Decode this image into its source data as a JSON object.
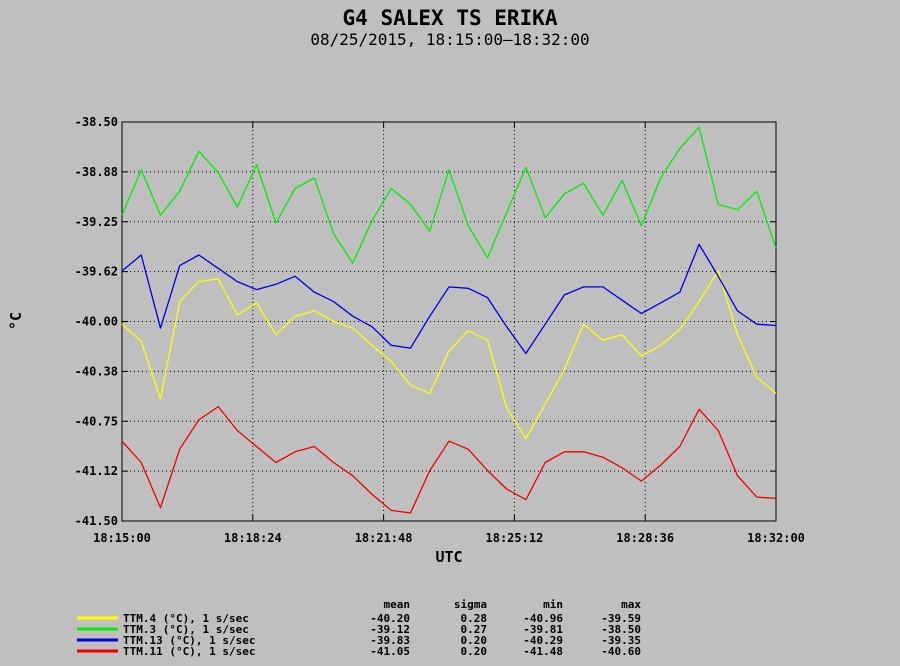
{
  "chart_data": {
    "type": "line",
    "title": "G4 SALEX TS ERIKA",
    "subtitle": "08/25/2015, 18:15:00–18:32:00",
    "xlabel": "UTC",
    "ylabel": "°C",
    "ylim": [
      -41.5,
      -38.5
    ],
    "y_ticks": [
      "-38.50",
      "-38.88",
      "-39.25",
      "-39.62",
      "-40.00",
      "-40.38",
      "-40.75",
      "-41.12",
      "-41.50"
    ],
    "x_ticks": [
      "18:15:00",
      "18:18:24",
      "18:21:48",
      "18:25:12",
      "18:28:36",
      "18:32:00"
    ],
    "x_seconds": [
      0,
      30,
      60,
      90,
      120,
      150,
      180,
      210,
      240,
      270,
      300,
      330,
      360,
      390,
      420,
      450,
      480,
      510,
      540,
      570,
      600,
      630,
      660,
      690,
      720,
      750,
      780,
      810,
      840,
      870,
      900,
      930,
      960,
      990,
      1020
    ],
    "grid": true,
    "legend_position": "bottom",
    "stats_headers": [
      "mean",
      "sigma",
      "min",
      "max"
    ],
    "series": [
      {
        "name": "TTM.4 (°C), 1 s/sec",
        "color": "#ffff00",
        "stats": [
          "-40.20",
          "0.28",
          "-40.96",
          "-39.59"
        ],
        "values": [
          -40.02,
          -40.15,
          -40.58,
          -39.85,
          -39.7,
          -39.68,
          -39.95,
          -39.86,
          -40.1,
          -39.96,
          -39.92,
          -40.0,
          -40.05,
          -40.18,
          -40.3,
          -40.48,
          -40.54,
          -40.22,
          -40.07,
          -40.14,
          -40.65,
          -40.88,
          -40.62,
          -40.36,
          -40.02,
          -40.14,
          -40.1,
          -40.26,
          -40.18,
          -40.06,
          -39.85,
          -39.62,
          -40.1,
          -40.42,
          -40.54
        ]
      },
      {
        "name": "TTM.3 (°C), 1 s/sec",
        "color": "#00ee00",
        "stats": [
          "-39.12",
          "0.27",
          "-39.81",
          "-38.50"
        ],
        "values": [
          -39.2,
          -38.86,
          -39.2,
          -39.02,
          -38.72,
          -38.88,
          -39.14,
          -38.82,
          -39.26,
          -39.0,
          -38.92,
          -39.34,
          -39.56,
          -39.24,
          -39.0,
          -39.12,
          -39.32,
          -38.86,
          -39.28,
          -39.52,
          -39.18,
          -38.84,
          -39.22,
          -39.04,
          -38.96,
          -39.2,
          -38.94,
          -39.28,
          -38.92,
          -38.7,
          -38.54,
          -39.12,
          -39.16,
          -39.02,
          -39.45
        ]
      },
      {
        "name": "TTM.13 (°C), 1 s/sec",
        "color": "#0000dd",
        "stats": [
          "-39.83",
          "0.20",
          "-40.29",
          "-39.35"
        ],
        "values": [
          -39.62,
          -39.5,
          -40.05,
          -39.58,
          -39.5,
          -39.6,
          -39.7,
          -39.76,
          -39.72,
          -39.66,
          -39.78,
          -39.85,
          -39.96,
          -40.04,
          -40.18,
          -40.2,
          -39.96,
          -39.74,
          -39.75,
          -39.82,
          -40.04,
          -40.24,
          -40.02,
          -39.8,
          -39.74,
          -39.74,
          -39.84,
          -39.94,
          -39.86,
          -39.78,
          -39.42,
          -39.66,
          -39.92,
          -40.02,
          -40.03
        ]
      },
      {
        "name": "TTM.11 (°C), 1 s/sec",
        "color": "#ee0000",
        "stats": [
          "-41.05",
          "0.20",
          "-41.48",
          "-40.60"
        ],
        "values": [
          -40.9,
          -41.06,
          -41.4,
          -40.96,
          -40.74,
          -40.64,
          -40.82,
          -40.94,
          -41.06,
          -40.98,
          -40.94,
          -41.06,
          -41.16,
          -41.3,
          -41.42,
          -41.44,
          -41.12,
          -40.9,
          -40.96,
          -41.12,
          -41.26,
          -41.34,
          -41.06,
          -40.98,
          -40.98,
          -41.02,
          -41.1,
          -41.2,
          -41.08,
          -40.94,
          -40.66,
          -40.82,
          -41.16,
          -41.32,
          -41.33
        ]
      }
    ]
  }
}
